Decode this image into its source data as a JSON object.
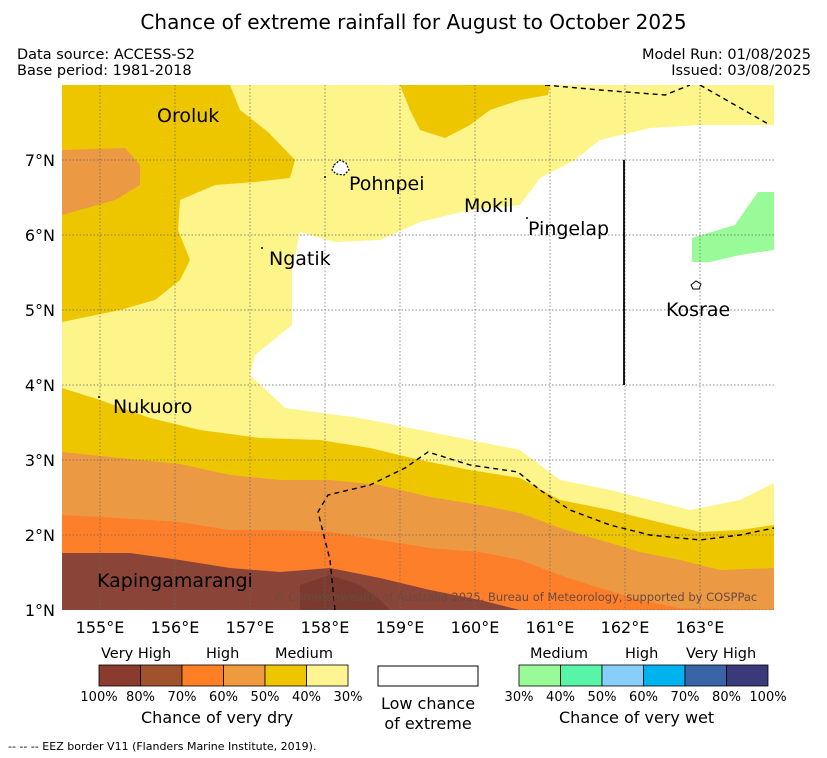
{
  "header": {
    "title": "Chance of extreme rainfall for August to October 2025",
    "data_source": "Data source: ACCESS-S2",
    "base_period": "Base period: 1981-2018",
    "model_run": "Model Run: 01/08/2025",
    "issued": "Issued: 03/08/2025"
  },
  "map": {
    "lat_ticks": [
      "7°N",
      "6°N",
      "5°N",
      "4°N",
      "3°N",
      "2°N",
      "1°N"
    ],
    "lon_ticks": [
      "155°E",
      "156°E",
      "157°E",
      "158°E",
      "159°E",
      "160°E",
      "161°E",
      "162°E",
      "163°E"
    ],
    "places": [
      "Oroluk",
      "Pohnpei",
      "Mokil",
      "Pingelap",
      "Ngatik",
      "Kosrae",
      "Nukuoro",
      "Kapingamarangi"
    ],
    "copyright": "© Commonwealth of Australia 2025, Bureau of Meteorology, supported by COSPPac",
    "colors": {
      "dry_100_80": "#8b4538",
      "dry_80_70": "#b04a36",
      "dry_70_60": "#fe7f2a",
      "dry_60_50": "#ec9944",
      "dry_50_30": "#eec600",
      "dry_30": "#fdf48a",
      "wet_30": "#98fb98"
    }
  },
  "legend": {
    "dry": {
      "levels": [
        "Very High",
        "High",
        "Medium"
      ],
      "pcts": [
        "100%",
        "80%",
        "70%",
        "60%",
        "50%",
        "40%",
        "30%"
      ],
      "colors": [
        "#8b3a2e",
        "#a0522d",
        "#ff7f24",
        "#f09a40",
        "#eec600",
        "#fef592"
      ],
      "title": "Chance of very dry"
    },
    "low": {
      "title_line1": "Low chance",
      "title_line2": "of extreme"
    },
    "wet": {
      "levels": [
        "Medium",
        "High",
        "Very High"
      ],
      "pcts": [
        "30%",
        "40%",
        "50%",
        "60%",
        "70%",
        "80%",
        "100%"
      ],
      "colors": [
        "#98fb98",
        "#58f5a8",
        "#87cefa",
        "#00b2ee",
        "#3a64a8",
        "#3a3a7a"
      ],
      "title": "Chance of very wet"
    }
  },
  "footnote": "-- -- -- EEZ border V11 (Flanders Marine Institute, 2019)."
}
